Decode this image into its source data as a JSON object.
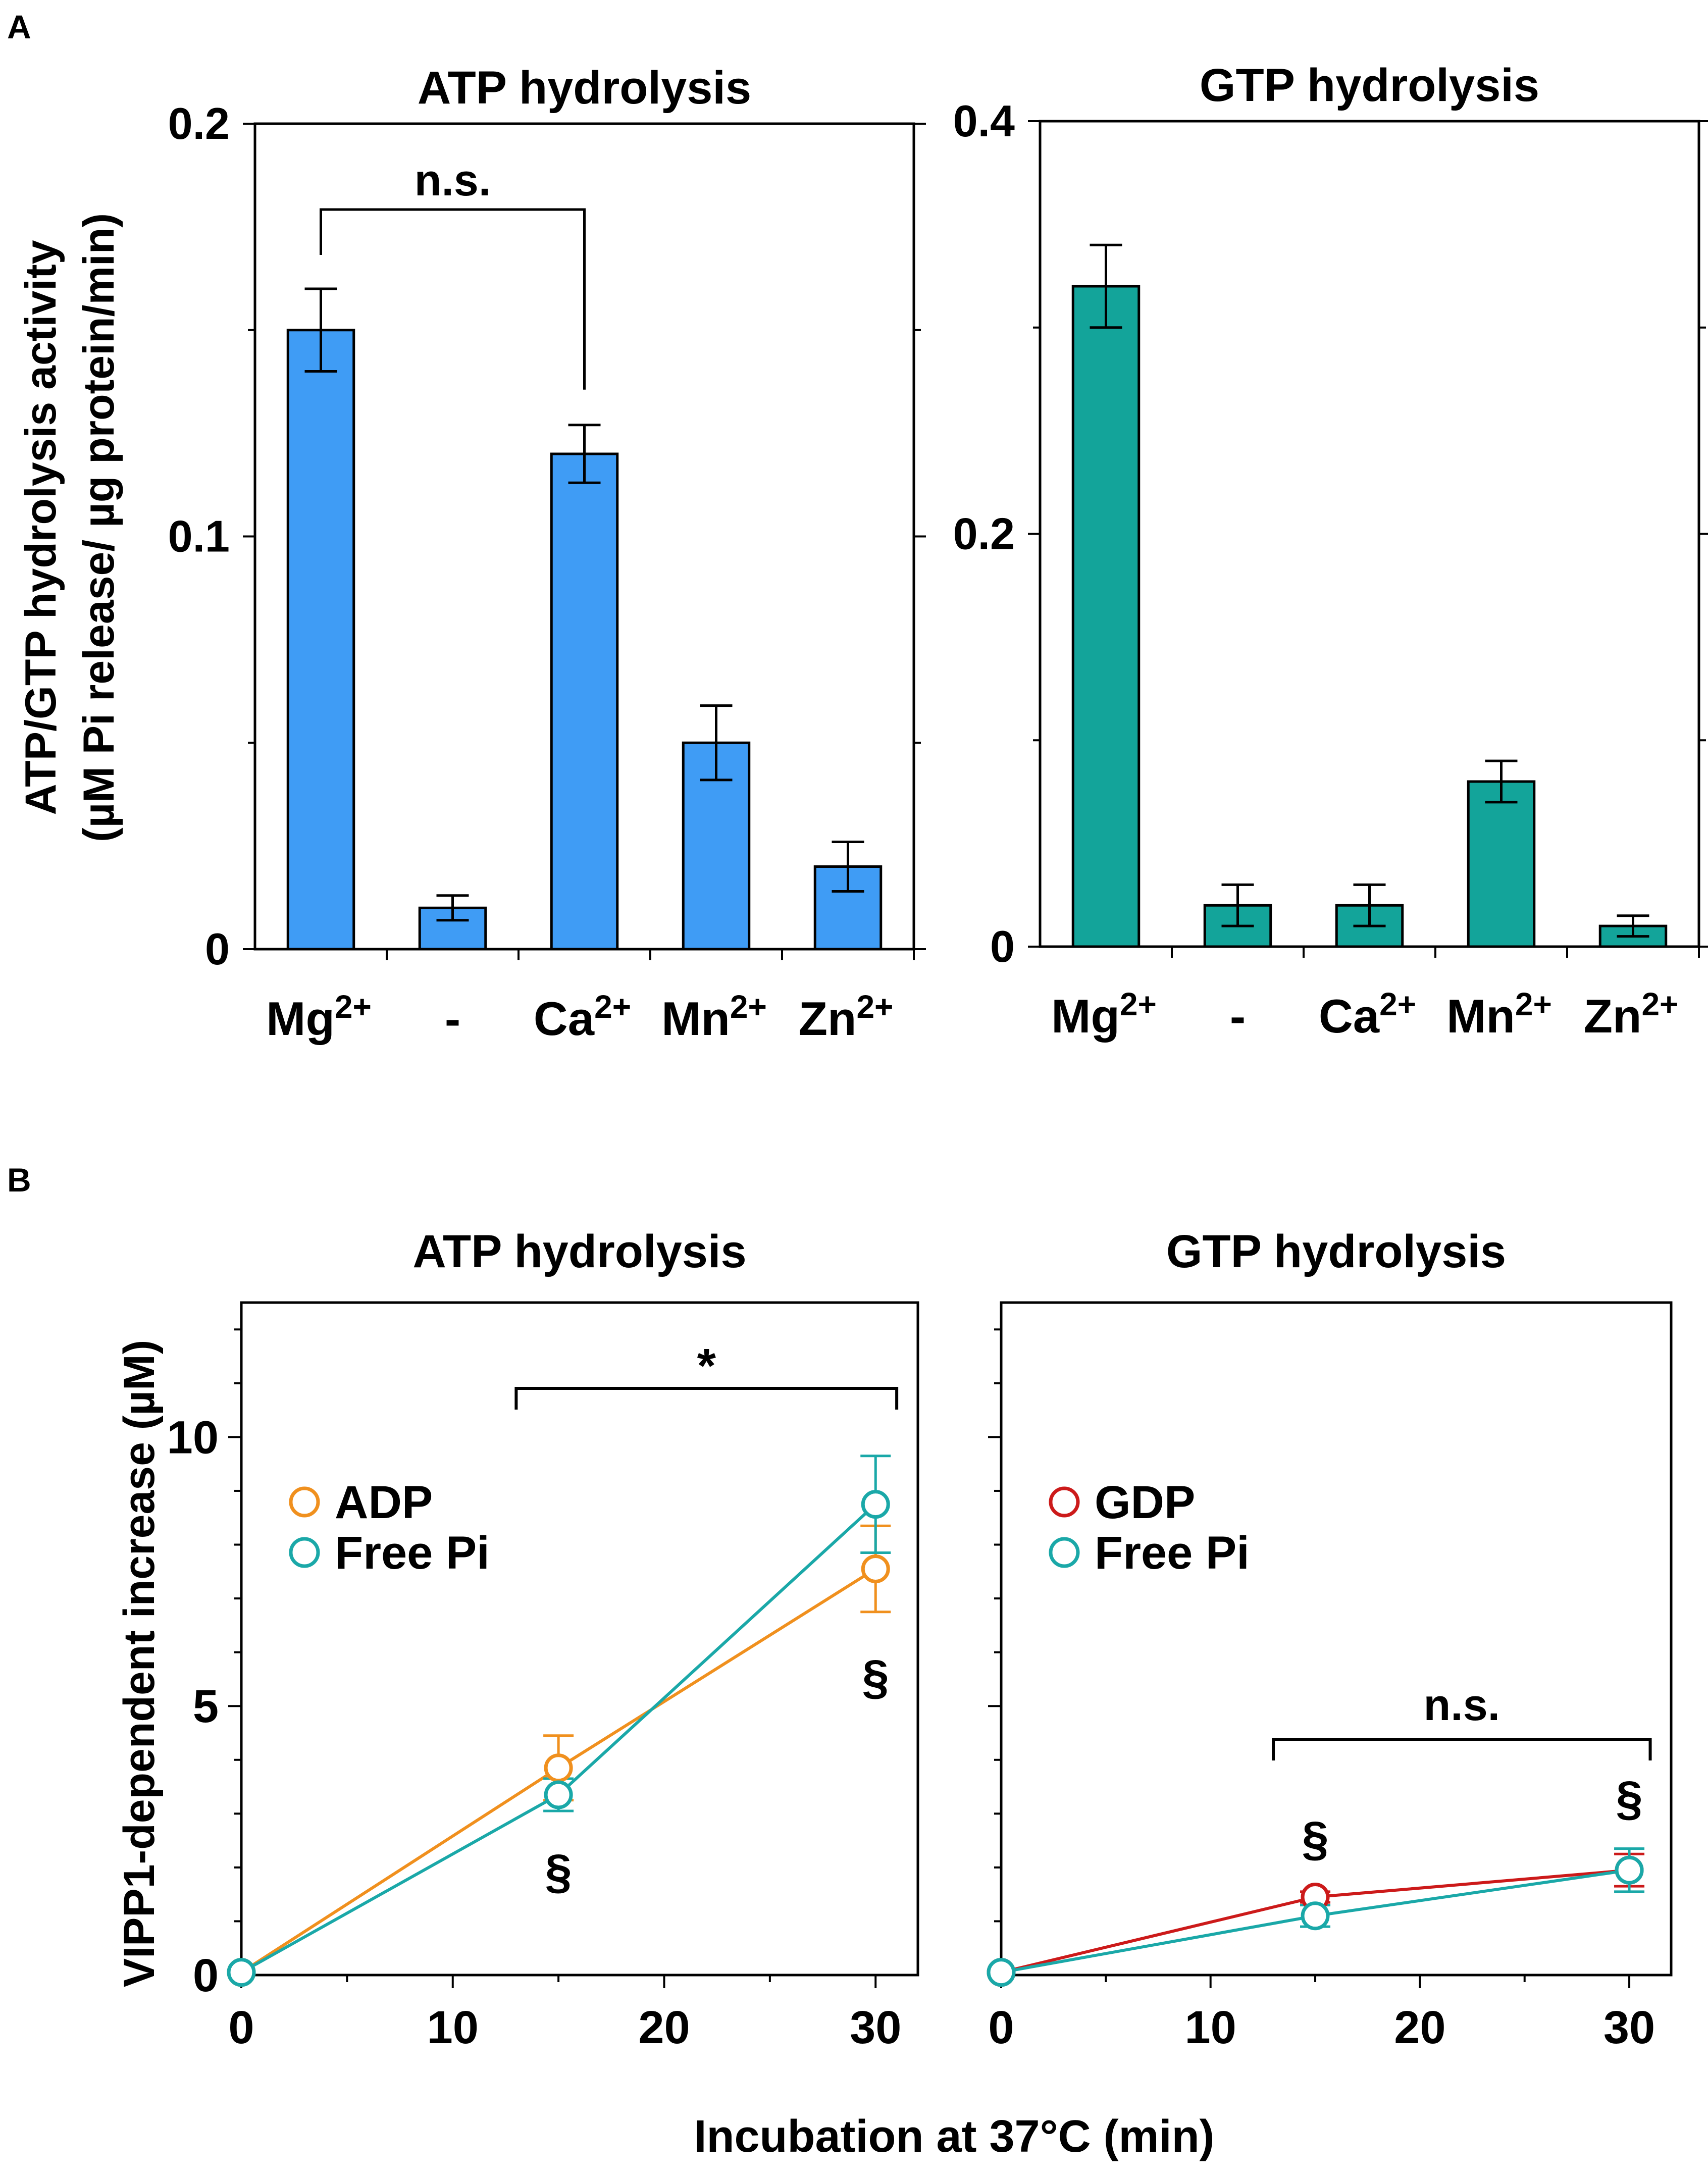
{
  "figure": {
    "panel_a_label": "A",
    "panel_b_label": "B",
    "panel_a_ylabel_line1": "ATP/GTP hydrolysis activity",
    "panel_a_ylabel_line2": "(µM Pi release/ µg protein/min)",
    "panel_b_ylabel": "VIPP1-dependent increase (µM)",
    "panel_b_xlabel": "Incubation at 37°C (min)",
    "section_mark": "§"
  },
  "colors": {
    "atp_bar": "#3f9cf5",
    "gtp_bar": "#13a49a",
    "adp": "#f0901e",
    "gdp": "#cc1a1a",
    "free_pi": "#1aa8a8",
    "star": "#e01010"
  },
  "chart_data": [
    {
      "id": "a_atp",
      "type": "bar",
      "title": "ATP hydrolysis",
      "categories": [
        "Mg",
        "-",
        "Ca",
        "Mn",
        "Zn"
      ],
      "category_sup": [
        "2+",
        "",
        "2+",
        "2+",
        "2+"
      ],
      "values": [
        0.15,
        0.01,
        0.12,
        0.05,
        0.02
      ],
      "errors": [
        0.01,
        0.003,
        0.007,
        0.009,
        0.006
      ],
      "ylim": [
        0,
        0.2
      ],
      "yticks": [
        0,
        0.1,
        0.2
      ],
      "ytick_labels": [
        "0",
        "0.1",
        "0.2"
      ],
      "annotation": {
        "text": "n.s.",
        "from": 0,
        "to": 2
      }
    },
    {
      "id": "a_gtp",
      "type": "bar",
      "title": "GTP hydrolysis",
      "categories": [
        "Mg",
        "-",
        "Ca",
        "Mn",
        "Zn"
      ],
      "category_sup": [
        "2+",
        "",
        "2+",
        "2+",
        "2+"
      ],
      "values": [
        0.32,
        0.02,
        0.02,
        0.08,
        0.01
      ],
      "errors": [
        0.02,
        0.01,
        0.01,
        0.01,
        0.005
      ],
      "ylim": [
        0,
        0.4
      ],
      "yticks": [
        0,
        0.2,
        0.4
      ],
      "ytick_labels": [
        "0",
        "0.2",
        "0.4"
      ]
    },
    {
      "id": "b_atp",
      "type": "line",
      "title": "ATP hydrolysis",
      "x": [
        0,
        15,
        30
      ],
      "xlim": [
        0,
        32
      ],
      "xticks": [
        0,
        10,
        20,
        30
      ],
      "ylim": [
        0,
        12.5
      ],
      "yticks": [
        0,
        5,
        10
      ],
      "series": [
        {
          "name": "ADP",
          "values": [
            0.05,
            3.85,
            7.55
          ],
          "errors": [
            0,
            0.6,
            0.8
          ]
        },
        {
          "name": "Free Pi",
          "values": [
            0.05,
            3.35,
            8.75
          ],
          "errors": [
            0,
            0.3,
            0.9
          ]
        }
      ],
      "annotation": {
        "text": "*",
        "from": 13,
        "to": 31
      },
      "section_marks": [
        15,
        30
      ]
    },
    {
      "id": "b_gtp",
      "type": "line",
      "title": "GTP hydrolysis",
      "x": [
        0,
        15,
        30
      ],
      "xlim": [
        0,
        32
      ],
      "xticks": [
        0,
        10,
        20,
        30
      ],
      "ylim": [
        0,
        12.5
      ],
      "yticks": [
        0,
        5,
        10
      ],
      "series": [
        {
          "name": "GDP",
          "values": [
            0.05,
            1.45,
            1.95
          ],
          "errors": [
            0,
            0.1,
            0.3
          ]
        },
        {
          "name": "Free Pi",
          "values": [
            0.05,
            1.1,
            1.95
          ],
          "errors": [
            0,
            0.2,
            0.4
          ]
        }
      ],
      "annotation": {
        "text": "n.s.",
        "from": 13,
        "to": 31
      },
      "section_marks": [
        15,
        30
      ]
    }
  ]
}
